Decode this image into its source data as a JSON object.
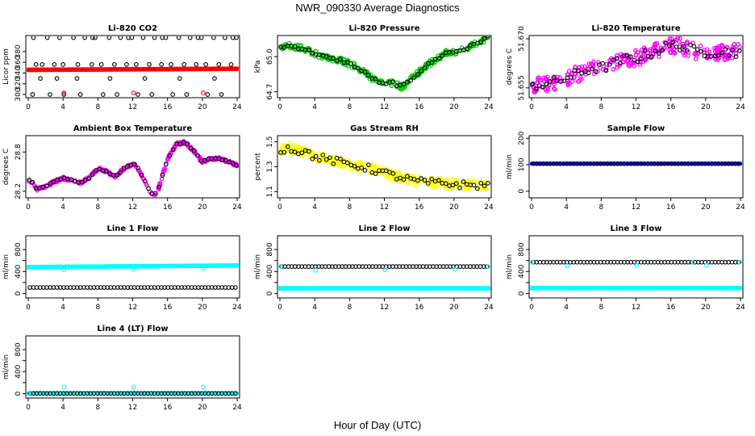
{
  "figure_title": "NWR_090330  Average Diagnostics",
  "x_axis_label": "Hour of Day (UTC)",
  "chart_data": [
    {
      "type": "scatter",
      "title": "Li-820 CO2",
      "ylabel": "Licor ppm",
      "xlim": [
        0,
        24
      ],
      "xticks": [
        0,
        4,
        8,
        12,
        16,
        20,
        24
      ],
      "ylim": [
        294,
        410
      ],
      "yticks": [
        300,
        320,
        340,
        360,
        380
      ],
      "series": [
        {
          "name": "red band",
          "color": "#ff0000",
          "kind": "band",
          "x": [
            0,
            24
          ],
          "y": [
            346,
            348
          ],
          "width": 4
        },
        {
          "name": "black points",
          "color": "#000000",
          "kind": "points",
          "x": [
            0.6,
            2.2,
            3.6,
            5.2,
            6.5,
            7.4,
            7.7,
            9.3,
            10.6,
            11.5,
            11.9,
            13.2,
            14.5,
            15.4,
            15.8,
            17.3,
            18.6,
            19.5,
            19.9,
            21.3,
            22.6,
            23.5,
            23.9,
            0.9,
            1.6,
            3.0,
            4.0,
            5.7,
            7.3,
            8.4,
            9.9,
            11.3,
            12.4,
            13.9,
            15.3,
            16.4,
            17.9,
            19.3,
            20.4,
            21.9,
            23.3,
            0.5,
            2.5,
            4.1,
            6.0,
            8.6,
            10.2,
            12.6,
            14.2,
            16.6,
            18.2,
            20.6,
            22.2,
            1.4,
            3.3,
            5.6,
            9.4,
            13.4,
            17.4,
            21.4
          ],
          "y": [
            406,
            406,
            406,
            406,
            406,
            406,
            406,
            406,
            406,
            406,
            406,
            406,
            406,
            406,
            406,
            406,
            406,
            406,
            406,
            406,
            406,
            406,
            406,
            356,
            356,
            356,
            356,
            356,
            356,
            356,
            356,
            356,
            356,
            356,
            356,
            356,
            356,
            356,
            356,
            356,
            356,
            300,
            300,
            300,
            300,
            300,
            300,
            300,
            300,
            300,
            300,
            300,
            300,
            330,
            330,
            330,
            330,
            330,
            330,
            330
          ]
        },
        {
          "name": "red points",
          "color": "#ff0000",
          "kind": "points",
          "x": [
            4.1,
            12.1,
            20.1
          ],
          "y": [
            303,
            303,
            303
          ]
        }
      ]
    },
    {
      "type": "scatter",
      "title": "Li-820 Pressure",
      "ylabel": "kPa",
      "xlim": [
        0,
        24
      ],
      "xticks": [
        0,
        4,
        8,
        12,
        16,
        20,
        24
      ],
      "ylim": [
        64.65,
        65.18
      ],
      "yticks": [
        64.7,
        65.0
      ],
      "ytick_labels": [
        "64.7",
        "65.0"
      ],
      "series": [
        {
          "name": "green points",
          "color": "#00cc00",
          "kind": "noisy_line",
          "x": [
            0,
            1,
            2,
            3,
            4,
            5,
            6,
            7,
            8,
            9,
            10,
            11,
            12,
            13,
            14,
            15,
            16,
            17,
            18,
            19,
            20,
            21,
            22,
            23,
            24
          ],
          "y": [
            65.08,
            65.09,
            65.08,
            65.06,
            65.03,
            65.0,
            64.98,
            64.97,
            64.94,
            64.9,
            64.85,
            64.8,
            64.76,
            64.78,
            64.74,
            64.8,
            64.87,
            64.93,
            64.98,
            65.03,
            65.04,
            65.06,
            65.09,
            65.13,
            65.17
          ],
          "noise": 0.025
        },
        {
          "name": "black points",
          "color": "#000000",
          "kind": "sparse_line",
          "x": [
            0,
            1,
            2,
            3,
            4,
            5,
            6,
            7,
            8,
            9,
            10,
            11,
            12,
            13,
            14,
            15,
            16,
            17,
            18,
            19,
            20,
            21,
            22,
            23,
            24
          ],
          "y": [
            65.08,
            65.09,
            65.08,
            65.06,
            65.03,
            65.0,
            64.98,
            64.97,
            64.94,
            64.9,
            64.85,
            64.8,
            64.76,
            64.78,
            64.74,
            64.8,
            64.87,
            64.93,
            64.98,
            65.03,
            65.04,
            65.06,
            65.09,
            65.13,
            65.17
          ],
          "noise": 0.012
        }
      ]
    },
    {
      "type": "scatter",
      "title": "Li-820 Temperature",
      "ylabel": "degrees C",
      "xlim": [
        0,
        24
      ],
      "xticks": [
        0,
        4,
        8,
        12,
        16,
        20,
        24
      ],
      "ylim": [
        51.652,
        51.671
      ],
      "yticks": [
        51.655,
        51.67
      ],
      "ytick_labels": [
        "51.655",
        "51.670"
      ],
      "series": [
        {
          "name": "magenta points",
          "color": "#ff00ff",
          "kind": "noisy_line",
          "x": [
            0,
            1,
            2,
            3,
            4,
            5,
            6,
            7,
            8,
            9,
            10,
            11,
            12,
            13,
            14,
            15,
            16,
            17,
            18,
            19,
            20,
            21,
            22,
            23,
            24
          ],
          "y": [
            51.656,
            51.656,
            51.6565,
            51.657,
            51.658,
            51.659,
            51.66,
            51.661,
            51.661,
            51.662,
            51.663,
            51.664,
            51.664,
            51.665,
            51.666,
            51.667,
            51.668,
            51.668,
            51.667,
            51.666,
            51.666,
            51.666,
            51.666,
            51.666,
            51.666
          ],
          "noise": 0.0025
        },
        {
          "name": "black points",
          "color": "#000000",
          "kind": "sparse_line",
          "x": [
            0,
            1,
            2,
            3,
            4,
            5,
            6,
            7,
            8,
            9,
            10,
            11,
            12,
            13,
            14,
            15,
            16,
            17,
            18,
            19,
            20,
            21,
            22,
            23,
            24
          ],
          "y": [
            51.656,
            51.656,
            51.6565,
            51.657,
            51.658,
            51.659,
            51.66,
            51.661,
            51.661,
            51.662,
            51.663,
            51.664,
            51.664,
            51.665,
            51.666,
            51.667,
            51.668,
            51.668,
            51.667,
            51.666,
            51.666,
            51.666,
            51.666,
            51.666,
            51.666
          ],
          "noise": 0.0015
        }
      ]
    },
    {
      "type": "scatter",
      "title": "Ambient Box Temperature",
      "ylabel": "degrees C",
      "xlim": [
        0,
        24
      ],
      "xticks": [
        0,
        4,
        8,
        12,
        16,
        20,
        24
      ],
      "ylim": [
        28.1,
        29.05
      ],
      "yticks": [
        28.2,
        28.8
      ],
      "ytick_labels": [
        "28.2",
        "28.8"
      ],
      "series": [
        {
          "name": "magenta points",
          "color": "#ff00ff",
          "kind": "noisy_line",
          "x": [
            0,
            0.5,
            1,
            2,
            3,
            4,
            5,
            6,
            7,
            8,
            9,
            10,
            11,
            12,
            12.5,
            13,
            14,
            14.5,
            15,
            16,
            17,
            18,
            19,
            20,
            21,
            22,
            23,
            24
          ],
          "y": [
            28.38,
            28.33,
            28.23,
            28.27,
            28.35,
            28.4,
            28.37,
            28.33,
            28.4,
            28.55,
            28.5,
            28.42,
            28.55,
            28.62,
            28.58,
            28.45,
            28.2,
            28.14,
            28.25,
            28.7,
            28.92,
            28.95,
            28.82,
            28.65,
            28.7,
            28.7,
            28.65,
            28.6
          ],
          "noise": 0.02
        },
        {
          "name": "black points",
          "color": "#000000",
          "kind": "sparse_line",
          "x": [
            0,
            0.5,
            1,
            2,
            3,
            4,
            5,
            6,
            7,
            8,
            9,
            10,
            11,
            12,
            12.5,
            13,
            14,
            14.5,
            15,
            16,
            17,
            18,
            19,
            20,
            21,
            22,
            23,
            24
          ],
          "y": [
            28.38,
            28.33,
            28.23,
            28.27,
            28.35,
            28.4,
            28.37,
            28.33,
            28.4,
            28.55,
            28.5,
            28.42,
            28.55,
            28.62,
            28.58,
            28.45,
            28.2,
            28.14,
            28.25,
            28.7,
            28.92,
            28.95,
            28.82,
            28.65,
            28.7,
            28.7,
            28.65,
            28.6
          ],
          "noise": 0.01
        }
      ]
    },
    {
      "type": "scatter",
      "title": "Gas Stream RH",
      "ylabel": "percent",
      "xlim": [
        0,
        24
      ],
      "xticks": [
        0,
        4,
        8,
        12,
        16,
        20,
        24
      ],
      "ylim": [
        1.05,
        1.55
      ],
      "yticks": [
        1.1,
        1.3,
        1.5
      ],
      "ytick_labels": [
        "1.1",
        "1.3",
        "1.5"
      ],
      "series": [
        {
          "name": "yellow points",
          "color": "#ffff00",
          "kind": "noisy_line",
          "x": [
            0,
            1,
            2,
            3,
            4,
            6,
            8,
            10,
            12,
            14,
            16,
            18,
            20,
            22,
            24
          ],
          "y": [
            1.44,
            1.45,
            1.43,
            1.42,
            1.38,
            1.35,
            1.32,
            1.29,
            1.25,
            1.21,
            1.18,
            1.17,
            1.16,
            1.15,
            1.15
          ],
          "noise": 0.04
        },
        {
          "name": "black points",
          "color": "#000000",
          "kind": "sparse_line",
          "x": [
            0,
            1,
            2,
            3,
            4,
            6,
            8,
            10,
            12,
            14,
            16,
            18,
            20,
            22,
            24
          ],
          "y": [
            1.44,
            1.45,
            1.43,
            1.42,
            1.38,
            1.35,
            1.32,
            1.29,
            1.25,
            1.21,
            1.18,
            1.17,
            1.16,
            1.15,
            1.15
          ],
          "noise": 0.03
        }
      ]
    },
    {
      "type": "scatter",
      "title": "Sample Flow",
      "ylabel": "ml/min",
      "xlim": [
        0,
        24
      ],
      "xticks": [
        0,
        4,
        8,
        12,
        16,
        20,
        24
      ],
      "ylim": [
        -25,
        210
      ],
      "yticks": [
        0,
        100,
        200
      ],
      "series": [
        {
          "name": "blue band",
          "color": "#0000ff",
          "kind": "band",
          "x": [
            0,
            24
          ],
          "y": [
            104,
            104
          ],
          "width": 3
        },
        {
          "name": "black points",
          "color": "#000000",
          "kind": "flat",
          "y": 104
        }
      ]
    },
    {
      "type": "scatter",
      "title": "Line 1 Flow",
      "ylabel": "ml/min",
      "xlim": [
        0,
        24
      ],
      "xticks": [
        0,
        4,
        8,
        12,
        16,
        20,
        24
      ],
      "ylim": [
        -80,
        1050
      ],
      "yticks": [
        0,
        200,
        400,
        600,
        800
      ],
      "ytick_labels": [
        "0",
        "",
        "400",
        "",
        "800"
      ],
      "series": [
        {
          "name": "cyan band",
          "color": "#00ffff",
          "kind": "band",
          "x": [
            0,
            24
          ],
          "y": [
            480,
            510
          ],
          "width": 4
        },
        {
          "name": "black points",
          "color": "#000000",
          "kind": "flat",
          "y": 110
        },
        {
          "name": "cyan outliers",
          "color": "#00ffff",
          "kind": "points",
          "x": [
            4.1,
            12.1,
            20.1
          ],
          "y": [
            430,
            440,
            450
          ]
        }
      ]
    },
    {
      "type": "scatter",
      "title": "Line 2 Flow",
      "ylabel": "ml/min",
      "xlim": [
        0,
        24
      ],
      "xticks": [
        0,
        4,
        8,
        12,
        16,
        20,
        24
      ],
      "ylim": [
        -80,
        1050
      ],
      "yticks": [
        0,
        200,
        400,
        600,
        800
      ],
      "ytick_labels": [
        "0",
        "",
        "400",
        "",
        "800"
      ],
      "series": [
        {
          "name": "cyan band",
          "color": "#00ffff",
          "kind": "band",
          "x": [
            0,
            24
          ],
          "y": [
            95,
            95
          ],
          "width": 4
        },
        {
          "name": "black points",
          "color": "#000000",
          "kind": "flat",
          "y": 490
        },
        {
          "name": "cyan points",
          "color": "#00ffff",
          "kind": "points",
          "x": [
            0.1,
            4.1,
            12.1,
            20.1,
            23.9
          ],
          "y": [
            490,
            420,
            430,
            440,
            490
          ]
        }
      ]
    },
    {
      "type": "scatter",
      "title": "Line 3 Flow",
      "ylabel": "ml/min",
      "xlim": [
        0,
        24
      ],
      "xticks": [
        0,
        4,
        8,
        12,
        16,
        20,
        24
      ],
      "ylim": [
        -80,
        1050
      ],
      "yticks": [
        0,
        200,
        400,
        600,
        800
      ],
      "ytick_labels": [
        "0",
        "",
        "400",
        "",
        "800"
      ],
      "series": [
        {
          "name": "cyan band",
          "color": "#00ffff",
          "kind": "band",
          "x": [
            0,
            24
          ],
          "y": [
            100,
            100
          ],
          "width": 4
        },
        {
          "name": "black points",
          "color": "#000000",
          "kind": "flat",
          "y": 570
        },
        {
          "name": "cyan points",
          "color": "#00ffff",
          "kind": "points",
          "x": [
            0.1,
            4.1,
            12.1,
            18.5,
            20.1,
            23.9
          ],
          "y": [
            570,
            500,
            510,
            570,
            510,
            570
          ]
        }
      ]
    },
    {
      "type": "scatter",
      "title": "Line 4 (LT) Flow",
      "ylabel": "ml/min",
      "xlim": [
        0,
        24
      ],
      "xticks": [
        0,
        4,
        8,
        12,
        16,
        20,
        24
      ],
      "ylim": [
        -80,
        1050
      ],
      "yticks": [
        0,
        200,
        400,
        600,
        800
      ],
      "ytick_labels": [
        "0",
        "",
        "400",
        "",
        "800"
      ],
      "series": [
        {
          "name": "cyan band",
          "color": "#00ffff",
          "kind": "band",
          "x": [
            0,
            24
          ],
          "y": [
            5,
            5
          ],
          "width": 3
        },
        {
          "name": "black points",
          "color": "#000000",
          "kind": "flat",
          "y": 5
        },
        {
          "name": "cyan points",
          "color": "#00ffff",
          "kind": "points",
          "x": [
            0.1,
            4.1,
            12.1,
            20.1
          ],
          "y": [
            5,
            120,
            120,
            120
          ]
        }
      ]
    }
  ]
}
